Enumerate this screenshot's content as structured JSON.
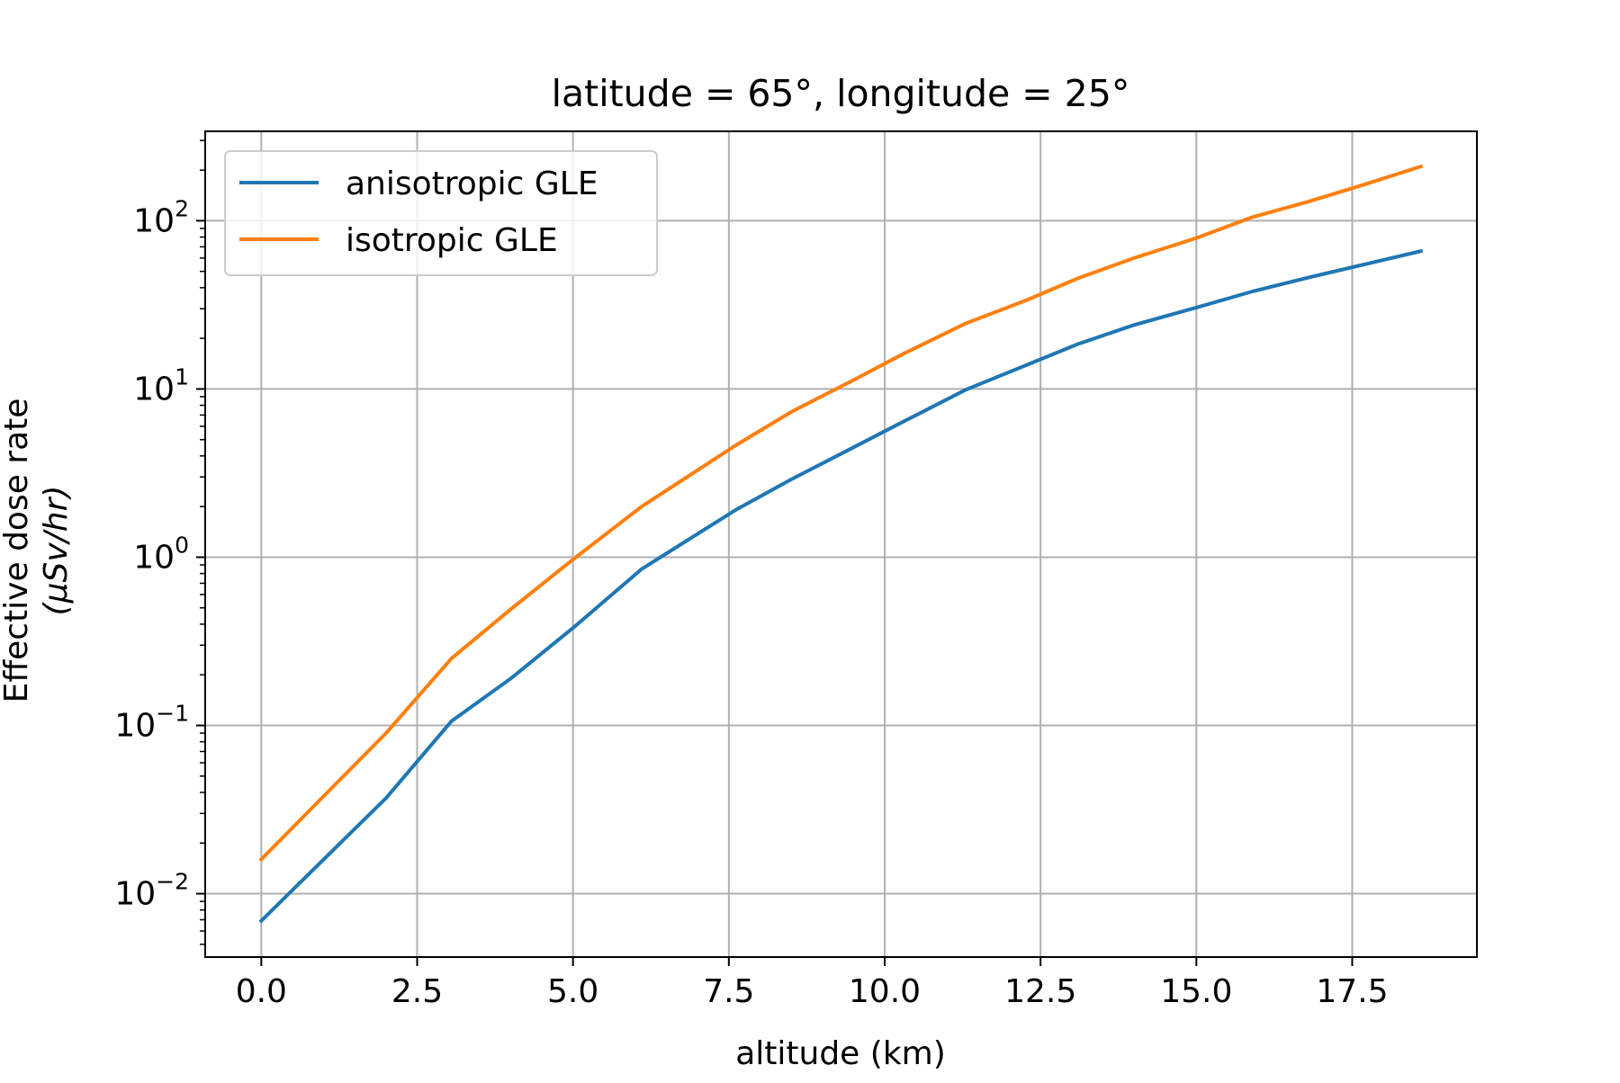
{
  "chart_data": {
    "type": "line",
    "title": "latitude = 65°, longitude = 25°",
    "xlabel": "altitude (km)",
    "ylabel": {
      "line1": "Effective dose rate",
      "line2": "(μSv/hr)"
    },
    "y_scale": "log",
    "xlim": [
      -0.9,
      19.5
    ],
    "ylim": [
      0.0042,
      340
    ],
    "x_ticks": [
      0.0,
      2.5,
      5.0,
      7.5,
      10.0,
      12.5,
      15.0,
      17.5
    ],
    "x_tick_labels": [
      "0.0",
      "2.5",
      "5.0",
      "7.5",
      "10.0",
      "12.5",
      "15.0",
      "17.5"
    ],
    "y_ticks": [
      {
        "value": 0.01,
        "base": "10",
        "exp": "−2"
      },
      {
        "value": 0.1,
        "base": "10",
        "exp": "−1"
      },
      {
        "value": 1,
        "base": "10",
        "exp": "0"
      },
      {
        "value": 10,
        "base": "10",
        "exp": "1"
      },
      {
        "value": 100,
        "base": "10",
        "exp": "2"
      }
    ],
    "grid": true,
    "legend_position": "top-left",
    "series": [
      {
        "name": "anisotropic GLE",
        "color": "#1f77b4",
        "x": [
          0.0,
          1.0,
          2.0,
          3.05,
          4.0,
          5.0,
          6.1,
          7.6,
          8.5,
          9.5,
          10.3,
          11.3,
          12.3,
          13.1,
          14.0,
          15.0,
          15.9,
          16.8,
          17.6,
          18.6
        ],
        "y": [
          0.0069,
          0.016,
          0.037,
          0.106,
          0.19,
          0.38,
          0.85,
          1.9,
          2.9,
          4.5,
          6.4,
          9.9,
          14.0,
          18.5,
          24.0,
          30.5,
          38.0,
          46.0,
          54.0,
          66.0
        ]
      },
      {
        "name": "isotropic GLE",
        "color": "#ff7f0e",
        "x": [
          0.0,
          1.0,
          2.0,
          3.05,
          4.0,
          5.0,
          6.1,
          7.6,
          8.5,
          9.5,
          10.3,
          11.3,
          12.3,
          13.1,
          14.0,
          15.0,
          15.9,
          16.8,
          17.6,
          18.6
        ],
        "y": [
          0.016,
          0.038,
          0.09,
          0.25,
          0.49,
          0.97,
          2.0,
          4.6,
          7.3,
          11.3,
          16.2,
          24.5,
          34.0,
          45.5,
          60.0,
          79.0,
          105.0,
          130.0,
          160.0,
          210.0
        ]
      }
    ]
  }
}
